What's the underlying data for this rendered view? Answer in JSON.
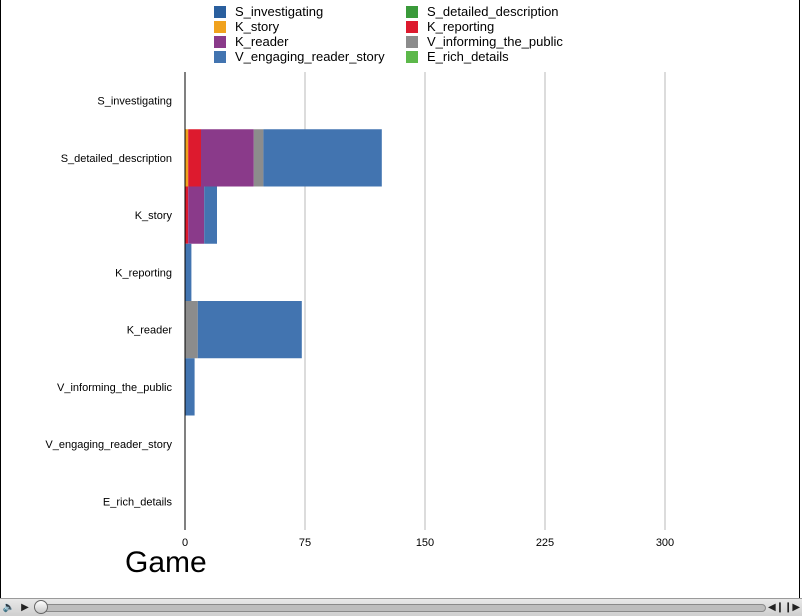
{
  "chart_data": {
    "type": "bar",
    "orientation": "horizontal",
    "stacked": true,
    "categories": [
      "S_investigating",
      "S_detailed_description",
      "K_story",
      "K_reporting",
      "K_reader",
      "V_informing_the_public",
      "V_engaging_reader_story",
      "E_rich_details"
    ],
    "series": [
      {
        "name": "S_investigating",
        "color": "#2a5f9e",
        "values": [
          0,
          0,
          0,
          0,
          0,
          0,
          0,
          0
        ]
      },
      {
        "name": "S_detailed_description",
        "color": "#3a9a3a",
        "values": [
          0,
          0,
          0,
          0,
          0,
          0,
          0,
          0
        ]
      },
      {
        "name": "K_story",
        "color": "#f0a21e",
        "values": [
          0,
          2,
          0,
          0,
          0,
          0,
          0,
          0
        ]
      },
      {
        "name": "K_reporting",
        "color": "#dd1a2e",
        "values": [
          0,
          8,
          2,
          0,
          0,
          0,
          0,
          0
        ]
      },
      {
        "name": "K_reader",
        "color": "#8a3a8a",
        "values": [
          0,
          33,
          10,
          0,
          0,
          0,
          0,
          0
        ]
      },
      {
        "name": "V_informing_the_public",
        "color": "#8c8c8c",
        "values": [
          0,
          6,
          0,
          0,
          8,
          0,
          0,
          0
        ]
      },
      {
        "name": "V_engaging_reader_story",
        "color": "#4274b0",
        "values": [
          0,
          74,
          8,
          4,
          65,
          6,
          0,
          0
        ]
      },
      {
        "name": "E_rich_details",
        "color": "#5cb84a",
        "values": [
          0,
          0,
          0,
          0,
          0,
          0,
          0,
          0
        ]
      }
    ],
    "xticks": [
      0,
      75,
      150,
      225,
      300
    ],
    "xlim": [
      0,
      375
    ],
    "grid": true,
    "legend_position": "top",
    "xlabel": "",
    "ylabel": ""
  },
  "caption": "Game",
  "player": {
    "volume_icon": "speaker-icon",
    "play_icon": "play-icon",
    "step_back_icon": "step-back-icon",
    "step_forward_icon": "step-forward-icon",
    "position": 0
  }
}
